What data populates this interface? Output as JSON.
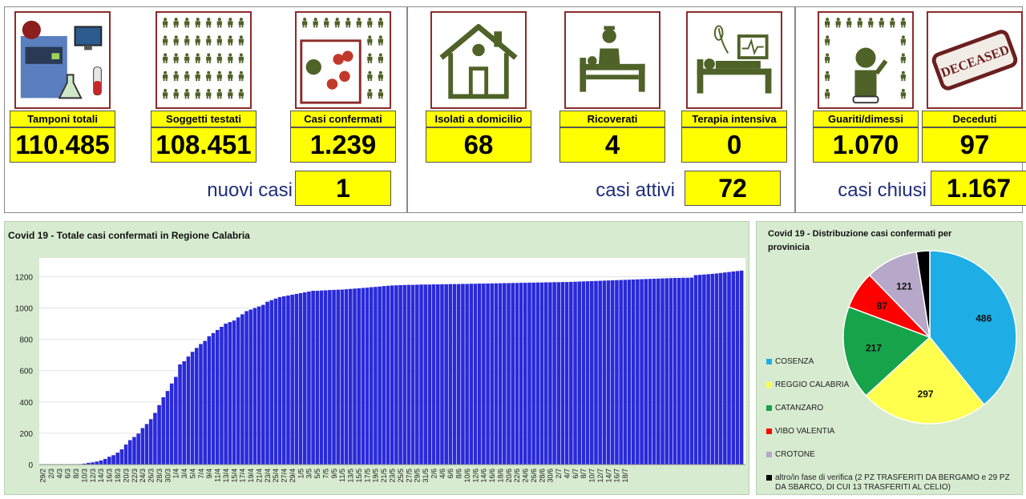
{
  "kpis": {
    "tamponi": {
      "label": "Tamponi totali",
      "value": "110.485"
    },
    "soggetti": {
      "label": "Soggetti testati",
      "value": "108.451"
    },
    "confermati": {
      "label": "Casi confermati",
      "value": "1.239"
    },
    "isolati": {
      "label": "Isolati a domicilio",
      "value": "68"
    },
    "ricoverati": {
      "label": "Ricoverati",
      "value": "4"
    },
    "terapia": {
      "label": "Terapia intensiva",
      "value": "0"
    },
    "guariti": {
      "label": "Guariti/dimessi",
      "value": "1.070"
    },
    "deceduti": {
      "label": "Deceduti",
      "value": "97"
    }
  },
  "summary": {
    "nuovi_casi": {
      "label": "nuovi casi",
      "value": "1"
    },
    "casi_attivi": {
      "label": "casi attivi",
      "value": "72"
    },
    "casi_chiusi": {
      "label": "casi chiusi",
      "value": "1.167"
    }
  },
  "icons": {
    "deceased_stamp": "DECEASED"
  },
  "colors": {
    "bar": "#2a2ad8",
    "highlight": "#ffff00",
    "tile_border": "#8b2b2b",
    "chart_bg": "#d6ebcf",
    "figure": "#4f6228",
    "cosenza": "#1eaee5",
    "reggio": "#ffff4d",
    "catanzaro": "#16a34a",
    "vibo": "#ff0000",
    "crotone": "#b7a7c9",
    "altro": "#000000"
  },
  "chart_data": [
    {
      "type": "bar",
      "title": "Covid 19 - Totale casi confermati in Regione Calabria",
      "ylim": [
        0,
        1320
      ],
      "yticks": [
        0,
        200,
        400,
        600,
        800,
        1000,
        1200
      ],
      "xtick_labels": [
        "29/2",
        "2/3",
        "4/3",
        "6/3",
        "8/3",
        "10/3",
        "12/3",
        "14/3",
        "16/3",
        "18/3",
        "20/3",
        "22/3",
        "24/3",
        "26/3",
        "28/3",
        "30/3",
        "1/4",
        "3/4",
        "5/4",
        "7/4",
        "9/4",
        "11/4",
        "13/4",
        "15/4",
        "17/4",
        "19/4",
        "21/4",
        "23/4",
        "25/4",
        "27/4",
        "29/4",
        "1/5",
        "3/5",
        "5/5",
        "7/5",
        "9/5",
        "11/5",
        "13/5",
        "15/5",
        "17/5",
        "19/5",
        "21/5",
        "23/5",
        "25/5",
        "27/5",
        "29/5",
        "31/5",
        "2/6",
        "4/6",
        "6/6",
        "8/6",
        "10/6",
        "12/6",
        "14/6",
        "16/6",
        "18/6",
        "20/6",
        "22/6",
        "24/6",
        "26/6",
        "28/6",
        "30/6",
        "2/7",
        "4/7",
        "6/7",
        "8/7",
        "10/7",
        "12/7",
        "14/7",
        "16/7",
        "18/7"
      ],
      "values": [
        1,
        1,
        1,
        1,
        1,
        1,
        1,
        1,
        1,
        3,
        6,
        11,
        14,
        19,
        26,
        36,
        50,
        60,
        76,
        97,
        128,
        156,
        176,
        198,
        233,
        259,
        290,
        330,
        380,
        430,
        470,
        518,
        560,
        640,
        660,
        690,
        720,
        745,
        770,
        790,
        820,
        840,
        860,
        880,
        900,
        910,
        920,
        940,
        960,
        980,
        990,
        1000,
        1010,
        1020,
        1040,
        1050,
        1060,
        1070,
        1075,
        1080,
        1085,
        1090,
        1095,
        1100,
        1105,
        1110,
        1110,
        1112,
        1113,
        1115,
        1116,
        1117,
        1118,
        1120,
        1122,
        1124,
        1126,
        1128,
        1130,
        1133,
        1135,
        1137,
        1140,
        1142,
        1144,
        1145,
        1146,
        1147,
        1148,
        1148,
        1149,
        1150,
        1150,
        1150,
        1151,
        1151,
        1152,
        1152,
        1153,
        1153,
        1153,
        1154,
        1154,
        1155,
        1155,
        1156,
        1156,
        1157,
        1157,
        1158,
        1158,
        1159,
        1159,
        1160,
        1160,
        1161,
        1161,
        1162,
        1162,
        1163,
        1163,
        1164,
        1164,
        1165,
        1165,
        1166,
        1166,
        1167,
        1168,
        1169,
        1170,
        1171,
        1172,
        1173,
        1174,
        1175,
        1176,
        1177,
        1178,
        1179,
        1180,
        1181,
        1182,
        1183,
        1184,
        1185,
        1186,
        1187,
        1188,
        1189,
        1190,
        1191,
        1192,
        1192,
        1193,
        1193,
        1194,
        1210,
        1212,
        1214,
        1216,
        1218,
        1221,
        1224,
        1227,
        1230,
        1233,
        1236,
        1239
      ]
    },
    {
      "type": "pie",
      "title": "Covid 19 - Distribuzione casi confermati per provinicia",
      "slices": [
        {
          "name": "COSENZA",
          "value": 486
        },
        {
          "name": "REGGIO CALABRIA",
          "value": 297
        },
        {
          "name": "CATANZARO",
          "value": 217
        },
        {
          "name": "VIBO VALENTIA",
          "value": 87
        },
        {
          "name": "CROTONE",
          "value": 121
        },
        {
          "name": "altro/in fase di verifica (2 PZ TRASFERITI DA BERGAMO e 29 PZ DA SBARCO, DI CUI 13 TRASFERITI AL CELIO)",
          "value": 31
        }
      ],
      "legend_lines": [
        "altro/in fase di verifica (2 PZ TRASFERITI DA BERGAMO e 29 PZ",
        "DA SBARCO, DI CUI 13 TRASFERITI AL CELIO)"
      ]
    }
  ]
}
